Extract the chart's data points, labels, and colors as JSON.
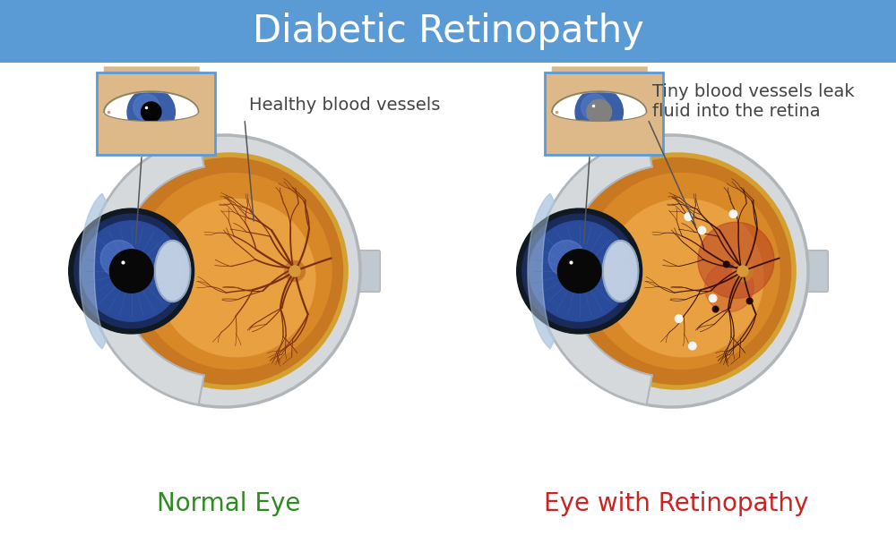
{
  "title": "Diabetic Retinopathy",
  "title_bg_color": "#5B9BD5",
  "title_text_color": "#FFFFFF",
  "bg_color": "#FFFFFF",
  "label_normal": "Normal Eye",
  "label_normal_color": "#2E8B22",
  "label_retinopathy": "Eye with Retinopathy",
  "label_retinopathy_color": "#CC2222",
  "annotation_normal": "Healthy blood vessels",
  "annotation_retinopathy": "Tiny blood vessels leak\nfluid into the retina",
  "annotation_color": "#444444",
  "sclera_color": "#D5D9DC",
  "sclera_edge_color": "#B0B5BA",
  "retina_outer_color": "#C87820",
  "retina_mid_color": "#D98828",
  "retina_inner_color": "#E8A040",
  "retina_ring_color": "#D4A030",
  "vessel_normal_color": "#7A3010",
  "vessel_retinopathy_color": "#3A1008",
  "iris_dark_color": "#1A2A5A",
  "iris_mid_color": "#2A4A9A",
  "iris_light_color": "#4A70C8",
  "iris_highlight_color": "#6A90E0",
  "pupil_color": "#080808",
  "lens_color": "#C8D5E8",
  "lens_edge_color": "#90A8C0",
  "cornea_color": "#B0C8E0",
  "mini_eye_bg": "#DDB888",
  "mini_eye_border": "#5B9BD5",
  "mini_pupil_normal": "#050505",
  "mini_pupil_diseased": "#808080",
  "damage_red_color": "#8B1505",
  "exudate_color": "#F5F5F5",
  "nerve_color": "#C0C8D0",
  "title_fontsize": 30,
  "label_fontsize": 20,
  "annotation_fontsize": 14
}
